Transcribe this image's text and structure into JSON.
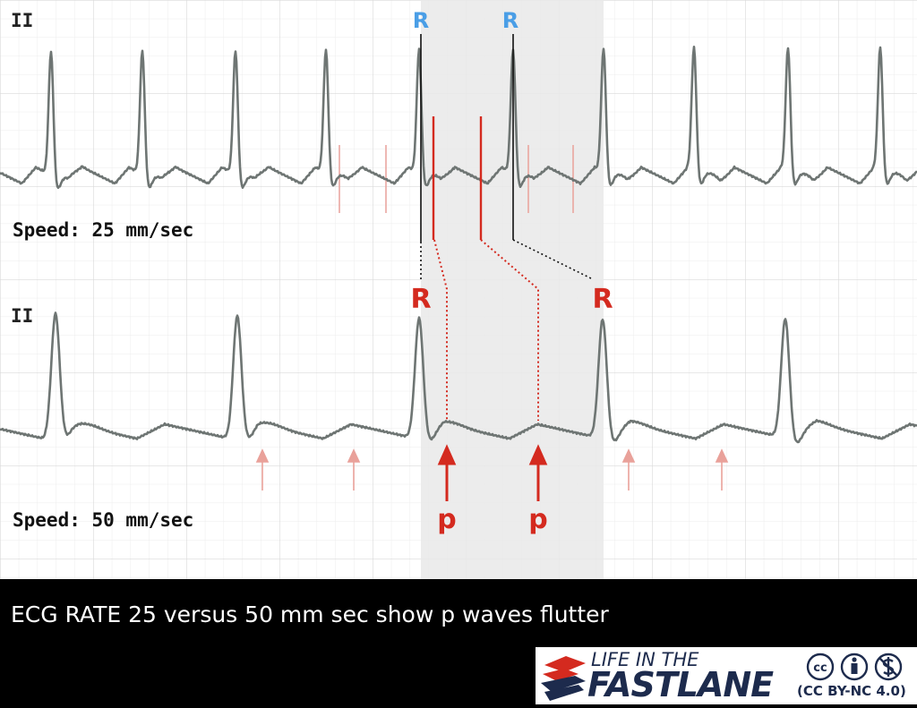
{
  "strips": [
    {
      "lead": "II",
      "speed": "Speed: 25 mm/sec"
    },
    {
      "lead": "II",
      "speed": "Speed: 50 mm/sec"
    }
  ],
  "annotations": {
    "r_label": "R",
    "p_label": "p"
  },
  "caption": "ECG RATE 25 versus 50 mm sec show p waves flutter",
  "logo": {
    "line1": "LIFE IN THE",
    "line2": "FASTLANE",
    "license": "(CC BY-NC 4.0)"
  },
  "colors": {
    "trace": "#6e7573",
    "grid": "#e6e6e6",
    "highlight": "#ececec",
    "red": "#d42a1f",
    "light_red": "#e9a19a",
    "blue": "#4a9ee6"
  }
}
